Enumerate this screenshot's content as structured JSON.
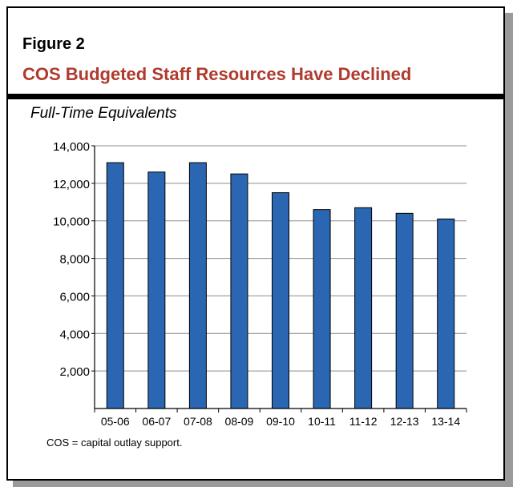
{
  "figure_label": "Figure 2",
  "figure_title": "COS Budgeted Staff Resources Have Declined",
  "footnote": "COS = capital outlay support.",
  "colors": {
    "bar": "#2a66b1",
    "title": "#b03a2e"
  },
  "chart_data": {
    "type": "bar",
    "title": "COS Budgeted Staff Resources Have Declined",
    "subtitle": "Full-Time Equivalents",
    "xlabel": "",
    "ylabel": "",
    "categories": [
      "05-06",
      "06-07",
      "07-08",
      "08-09",
      "09-10",
      "10-11",
      "11-12",
      "12-13",
      "13-14"
    ],
    "values": [
      13100,
      12600,
      13100,
      12500,
      11500,
      10600,
      10700,
      10400,
      10100
    ],
    "ylim": [
      0,
      14000
    ],
    "yticks": [
      2000,
      4000,
      6000,
      8000,
      10000,
      12000,
      14000
    ],
    "ytick_labels": [
      "2,000",
      "4,000",
      "6,000",
      "8,000",
      "10,000",
      "12,000",
      "14,000"
    ],
    "grid": true,
    "legend": "none"
  }
}
